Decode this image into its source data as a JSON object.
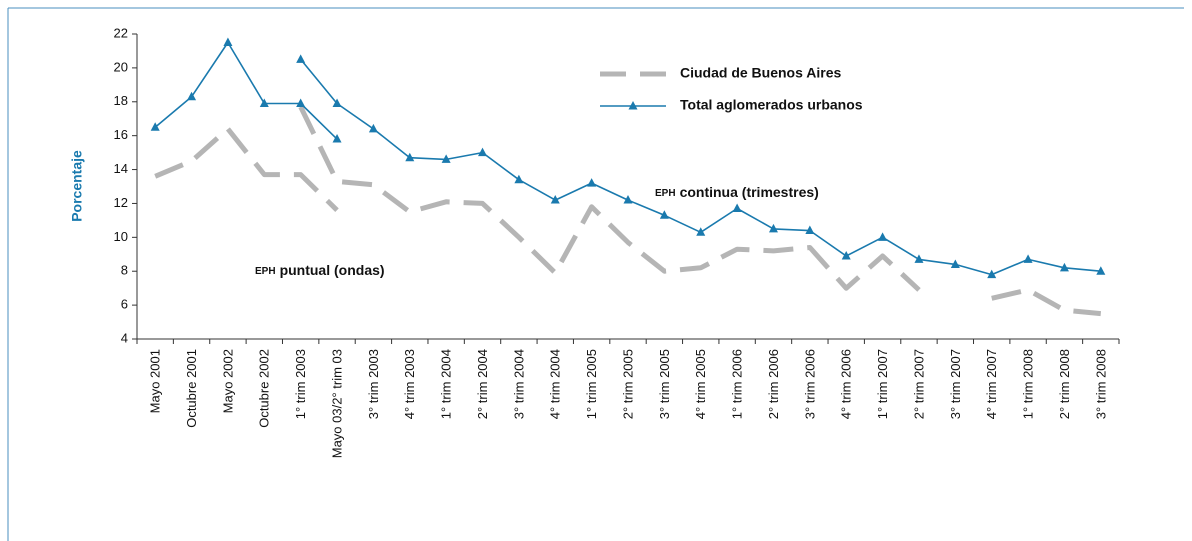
{
  "chart_data": {
    "type": "line",
    "ylabel": "Porcentaje",
    "categories": [
      "Mayo 2001",
      "Octubre 2001",
      "Mayo 2002",
      "Octubre 2002",
      "1° trim 2003",
      "Mayo 03/2° trim 03",
      "3° trim 2003",
      "4° trim 2003",
      "1° trim 2004",
      "2° trim 2004",
      "3° trim 2004",
      "4° trim 2004",
      "1° trim 2005",
      "2° trim 2005",
      "3° trim 2005",
      "4° trim 2005",
      "1° trim 2006",
      "2° trim 2006",
      "3° trim 2006",
      "4° trim 2006",
      "1° trim 2007",
      "2° trim 2007",
      "3° trim 2007",
      "4° trim 2007",
      "1° trim 2008",
      "2° trim 2008",
      "3° trim 2008"
    ],
    "ylim": [
      4,
      22
    ],
    "yticks": [
      4,
      6,
      8,
      10,
      12,
      14,
      16,
      18,
      20,
      22
    ],
    "series": [
      {
        "name": "Ciudad de Buenos Aires",
        "color": "#b5b5b5",
        "dashed": true,
        "marker": false,
        "ondas_values": [
          13.6,
          14.5,
          16.4,
          13.7,
          13.7,
          11.6,
          null,
          null,
          null,
          null,
          null,
          null,
          null,
          null,
          null,
          null,
          null,
          null,
          null,
          null,
          null,
          null,
          null,
          null,
          null,
          null,
          null
        ],
        "values": [
          null,
          null,
          null,
          null,
          17.7,
          13.3,
          13.1,
          11.5,
          12.1,
          12.0,
          10.0,
          7.9,
          11.8,
          9.7,
          8.0,
          8.2,
          9.3,
          9.2,
          9.4,
          7.0,
          8.9,
          6.9,
          null,
          6.4,
          6.9,
          5.7,
          5.5
        ]
      },
      {
        "name": "Total aglomerados urbanos",
        "color": "#1a7aae",
        "dashed": false,
        "marker": true,
        "ondas_values": [
          16.5,
          18.3,
          21.5,
          17.9,
          17.9,
          15.8,
          null,
          null,
          null,
          null,
          null,
          null,
          null,
          null,
          null,
          null,
          null,
          null,
          null,
          null,
          null,
          null,
          null,
          null,
          null,
          null,
          null
        ],
        "values": [
          null,
          null,
          null,
          null,
          20.5,
          17.9,
          16.4,
          14.7,
          14.6,
          15.0,
          13.4,
          12.2,
          13.2,
          12.2,
          11.3,
          10.3,
          11.7,
          10.5,
          10.4,
          8.9,
          10.0,
          8.7,
          8.4,
          7.8,
          8.7,
          8.2,
          8.0
        ]
      }
    ],
    "annotations": [
      {
        "abbr": "EPH",
        "text": "continua (trimestres)"
      },
      {
        "abbr": "EPH",
        "text": "puntual (ondas)"
      }
    ]
  }
}
